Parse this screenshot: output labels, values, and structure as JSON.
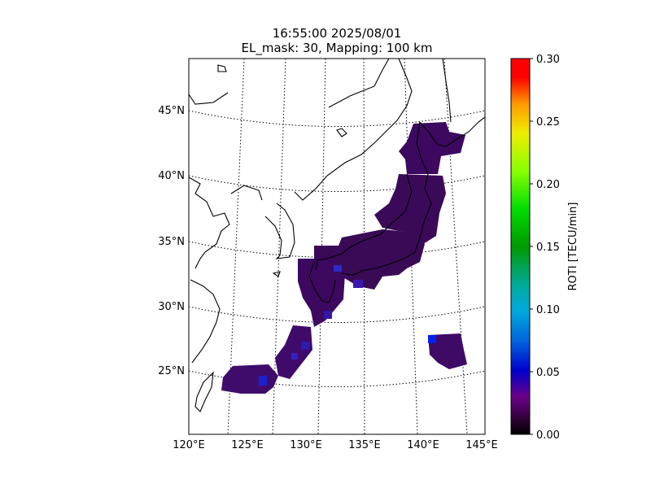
{
  "title": {
    "line1": "16:55:00 2025/08/01",
    "line2": "EL_mask: 30, Mapping: 100 km"
  },
  "map": {
    "projection": "conic",
    "lon_range": [
      120,
      145
    ],
    "lat_range": [
      20,
      48
    ],
    "graticule": "dotted",
    "lon_ticks": [
      "120°E",
      "125°E",
      "130°E",
      "135°E",
      "140°E",
      "145°E"
    ],
    "lat_ticks": [
      "45°N",
      "40°N",
      "35°N",
      "30°N",
      "25°N"
    ]
  },
  "colorbar": {
    "label": "ROTI [TECU/min]",
    "range": [
      0.0,
      0.3
    ],
    "ticks": [
      "0.30",
      "0.25",
      "0.20",
      "0.15",
      "0.10",
      "0.05",
      "0.00"
    ],
    "colormap": "nipy_spectral"
  },
  "chart_data": {
    "type": "heatmap",
    "title": "16:55:00 2025/08/01\nEL_mask: 30, Mapping: 100 km",
    "xlabel": "",
    "ylabel": "",
    "colorbar_label": "ROTI [TECU/min]",
    "value_range": [
      0.0,
      0.3
    ],
    "typical_value": 0.03,
    "regions": [
      {
        "lon_range": [
          138,
          143
        ],
        "lat_range": [
          41,
          45.5
        ],
        "value": 0.03
      },
      {
        "lon_range": [
          135,
          141
        ],
        "lat_range": [
          35,
          41
        ],
        "value": 0.03
      },
      {
        "lon_range": [
          129.5,
          139.5
        ],
        "lat_range": [
          32,
          35.8
        ],
        "value": 0.035
      },
      {
        "lon_range": [
          129.5,
          132.5
        ],
        "lat_range": [
          29.5,
          33
        ],
        "value": 0.035
      },
      {
        "lon_range": [
          127.5,
          130
        ],
        "lat_range": [
          25.5,
          28.5
        ],
        "value": 0.04
      },
      {
        "lon_range": [
          123,
          127
        ],
        "lat_range": [
          23.7,
          25.5
        ],
        "value": 0.04
      },
      {
        "lon_range": [
          140,
          143.5
        ],
        "lat_range": [
          25,
          27.5
        ],
        "value": 0.035
      }
    ],
    "high_points": [
      {
        "lon": 140.8,
        "lat": 27.3,
        "value": 0.07
      },
      {
        "lon": 126.5,
        "lat": 24.3,
        "value": 0.06
      },
      {
        "lon": 129.2,
        "lat": 26.8,
        "value": 0.06
      }
    ]
  }
}
